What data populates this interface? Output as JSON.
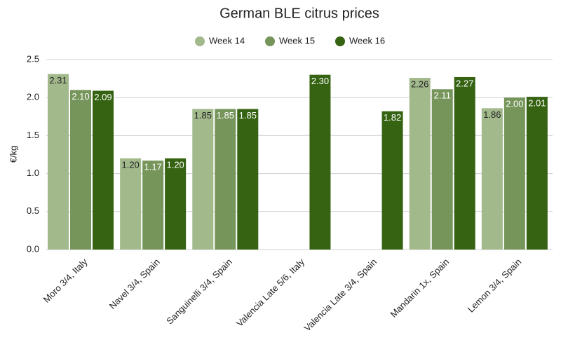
{
  "chart_data": {
    "type": "bar",
    "title": "German BLE citrus prices",
    "y_label": "€/kg",
    "categories": [
      "Moro 3/4, Italy",
      "Navel 3/4, Spain",
      "Sanguinelli 3/4, Spain",
      "Valencia Late 5/6, Italy",
      "Valencia Late 3/4, Spain",
      "Mandarin 1x, Spain",
      "Lemon 3/4, Spain"
    ],
    "series": [
      {
        "name": "Week 14",
        "color": "#a2b98c",
        "values": [
          2.31,
          1.2,
          1.85,
          null,
          null,
          2.26,
          1.86
        ],
        "value_labels": [
          "2.31",
          "1.20",
          "1.85",
          null,
          null,
          "2.26",
          "1.86"
        ]
      },
      {
        "name": "Week 15",
        "color": "#76955a",
        "values": [
          2.1,
          1.17,
          1.85,
          null,
          null,
          2.11,
          2.0
        ],
        "value_labels": [
          "2.10",
          "1.17",
          "1.85",
          null,
          null,
          "2.11",
          "2.00"
        ]
      },
      {
        "name": "Week 16",
        "color": "#356312",
        "values": [
          2.09,
          1.2,
          1.85,
          2.3,
          1.82,
          2.27,
          2.01
        ],
        "value_labels": [
          "2.09",
          "1.20",
          "1.85",
          "2.30",
          "1.82",
          "2.27",
          "2.01"
        ]
      }
    ],
    "ylim": [
      0,
      2.5
    ],
    "yticks": [
      {
        "value": 0,
        "label": "0.0"
      },
      0.5,
      {
        "value": 1,
        "label": "1.0"
      },
      1.5,
      {
        "value": 2,
        "label": "2.0"
      },
      2.5
    ],
    "grid": true,
    "legend": "top"
  }
}
